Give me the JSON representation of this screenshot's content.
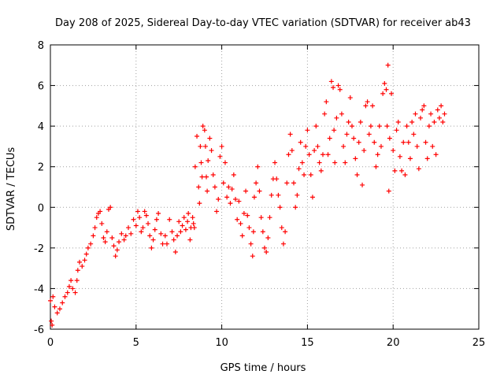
{
  "chart_data": {
    "type": "scatter",
    "title": "Day 208 of 2025, Sidereal Day-to-day VTEC variation (SDTVAR) for receiver ab43",
    "xlabel": "GPS time / hours",
    "ylabel": "SDTVAR / TECUs",
    "xlim": [
      0,
      25
    ],
    "ylim": [
      -6,
      8
    ],
    "x_ticks": [
      0,
      5,
      10,
      15,
      20,
      25
    ],
    "y_ticks": [
      -6,
      -4,
      -2,
      0,
      2,
      4,
      6,
      8
    ],
    "grid": true,
    "marker": "+",
    "color": "#ff0000",
    "series": [
      {
        "name": "SDTVAR",
        "points": [
          [
            0.0,
            -4.6
          ],
          [
            0.05,
            -5.6
          ],
          [
            0.1,
            -5.8
          ],
          [
            0.15,
            -4.4
          ],
          [
            0.25,
            -4.9
          ],
          [
            0.4,
            -5.2
          ],
          [
            0.55,
            -5.0
          ],
          [
            0.7,
            -4.7
          ],
          [
            0.85,
            -4.4
          ],
          [
            1.0,
            -4.2
          ],
          [
            1.1,
            -3.9
          ],
          [
            1.2,
            -3.6
          ],
          [
            1.3,
            -4.0
          ],
          [
            1.45,
            -4.2
          ],
          [
            1.55,
            -3.6
          ],
          [
            1.6,
            -3.1
          ],
          [
            1.7,
            -2.7
          ],
          [
            1.85,
            -2.9
          ],
          [
            2.0,
            -2.6
          ],
          [
            2.1,
            -2.3
          ],
          [
            2.2,
            -2.0
          ],
          [
            2.35,
            -1.8
          ],
          [
            2.5,
            -1.4
          ],
          [
            2.6,
            -1.0
          ],
          [
            2.7,
            -0.5
          ],
          [
            2.8,
            -0.3
          ],
          [
            2.9,
            -0.2
          ],
          [
            3.0,
            -0.8
          ],
          [
            3.1,
            -1.5
          ],
          [
            3.2,
            -1.7
          ],
          [
            3.3,
            -1.2
          ],
          [
            3.4,
            -0.1
          ],
          [
            3.5,
            0.0
          ],
          [
            3.6,
            -1.5
          ],
          [
            3.7,
            -1.9
          ],
          [
            3.8,
            -2.4
          ],
          [
            3.9,
            -2.1
          ],
          [
            4.0,
            -1.7
          ],
          [
            4.15,
            -1.3
          ],
          [
            4.3,
            -1.6
          ],
          [
            4.4,
            -1.4
          ],
          [
            4.55,
            -1.0
          ],
          [
            4.7,
            -1.3
          ],
          [
            4.85,
            -0.6
          ],
          [
            5.0,
            -0.9
          ],
          [
            5.1,
            -0.2
          ],
          [
            5.2,
            -0.5
          ],
          [
            5.3,
            -1.2
          ],
          [
            5.4,
            -1.0
          ],
          [
            5.5,
            -0.2
          ],
          [
            5.6,
            -0.4
          ],
          [
            5.7,
            -0.8
          ],
          [
            5.8,
            -1.4
          ],
          [
            5.9,
            -2.0
          ],
          [
            6.0,
            -1.6
          ],
          [
            6.1,
            -1.1
          ],
          [
            6.2,
            -0.6
          ],
          [
            6.3,
            -0.3
          ],
          [
            6.45,
            -1.3
          ],
          [
            6.55,
            -1.8
          ],
          [
            6.7,
            -1.4
          ],
          [
            6.8,
            -1.8
          ],
          [
            6.95,
            -0.6
          ],
          [
            7.1,
            -1.2
          ],
          [
            7.2,
            -1.6
          ],
          [
            7.3,
            -2.2
          ],
          [
            7.4,
            -1.4
          ],
          [
            7.5,
            -0.7
          ],
          [
            7.6,
            -1.2
          ],
          [
            7.7,
            -0.9
          ],
          [
            7.8,
            -0.5
          ],
          [
            7.9,
            -1.1
          ],
          [
            8.0,
            -0.7
          ],
          [
            8.05,
            -0.3
          ],
          [
            8.15,
            -1.6
          ],
          [
            8.2,
            -1.0
          ],
          [
            8.3,
            -0.5
          ],
          [
            8.35,
            -0.8
          ],
          [
            8.4,
            -1.0
          ],
          [
            8.45,
            2.0
          ],
          [
            8.55,
            3.5
          ],
          [
            8.65,
            1.0
          ],
          [
            8.7,
            0.2
          ],
          [
            8.75,
            3.0
          ],
          [
            8.8,
            2.2
          ],
          [
            8.85,
            1.5
          ],
          [
            8.9,
            4.0
          ],
          [
            9.0,
            3.8
          ],
          [
            9.05,
            3.0
          ],
          [
            9.1,
            1.5
          ],
          [
            9.15,
            0.8
          ],
          [
            9.2,
            2.3
          ],
          [
            9.3,
            3.4
          ],
          [
            9.4,
            2.8
          ],
          [
            9.5,
            1.6
          ],
          [
            9.6,
            1.0
          ],
          [
            9.7,
            -0.2
          ],
          [
            9.8,
            0.4
          ],
          [
            9.9,
            2.5
          ],
          [
            10.0,
            3.0
          ],
          [
            10.1,
            1.2
          ],
          [
            10.2,
            2.2
          ],
          [
            10.3,
            0.5
          ],
          [
            10.4,
            1.0
          ],
          [
            10.5,
            0.2
          ],
          [
            10.6,
            0.9
          ],
          [
            10.7,
            1.6
          ],
          [
            10.8,
            0.4
          ],
          [
            10.9,
            -0.6
          ],
          [
            11.0,
            0.3
          ],
          [
            11.1,
            -0.8
          ],
          [
            11.2,
            -1.4
          ],
          [
            11.3,
            -0.3
          ],
          [
            11.4,
            0.8
          ],
          [
            11.5,
            -0.4
          ],
          [
            11.6,
            -1.0
          ],
          [
            11.7,
            -1.8
          ],
          [
            11.8,
            -2.4
          ],
          [
            11.85,
            -1.2
          ],
          [
            11.9,
            0.5
          ],
          [
            12.0,
            1.2
          ],
          [
            12.1,
            2.0
          ],
          [
            12.2,
            0.8
          ],
          [
            12.3,
            -0.5
          ],
          [
            12.4,
            -1.2
          ],
          [
            12.5,
            -2.0
          ],
          [
            12.6,
            -2.2
          ],
          [
            12.7,
            -1.5
          ],
          [
            12.8,
            -0.5
          ],
          [
            12.9,
            0.6
          ],
          [
            13.0,
            1.4
          ],
          [
            13.1,
            2.2
          ],
          [
            13.2,
            1.4
          ],
          [
            13.3,
            0.6
          ],
          [
            13.4,
            0.0
          ],
          [
            13.5,
            -1.0
          ],
          [
            13.6,
            -1.8
          ],
          [
            13.7,
            -1.2
          ],
          [
            13.8,
            1.2
          ],
          [
            13.9,
            2.6
          ],
          [
            14.0,
            3.6
          ],
          [
            14.1,
            2.8
          ],
          [
            14.2,
            1.2
          ],
          [
            14.3,
            0.0
          ],
          [
            14.4,
            0.6
          ],
          [
            14.5,
            1.9
          ],
          [
            14.6,
            3.2
          ],
          [
            14.7,
            2.2
          ],
          [
            14.8,
            1.6
          ],
          [
            14.9,
            3.0
          ],
          [
            15.0,
            3.8
          ],
          [
            15.1,
            2.6
          ],
          [
            15.2,
            1.6
          ],
          [
            15.3,
            0.5
          ],
          [
            15.4,
            2.8
          ],
          [
            15.5,
            4.0
          ],
          [
            15.6,
            3.0
          ],
          [
            15.7,
            2.2
          ],
          [
            15.8,
            1.8
          ],
          [
            15.9,
            2.6
          ],
          [
            16.0,
            4.6
          ],
          [
            16.1,
            5.2
          ],
          [
            16.2,
            2.6
          ],
          [
            16.3,
            3.4
          ],
          [
            16.4,
            6.2
          ],
          [
            16.5,
            5.9
          ],
          [
            16.55,
            3.8
          ],
          [
            16.6,
            2.2
          ],
          [
            16.7,
            4.4
          ],
          [
            16.8,
            6.0
          ],
          [
            16.9,
            5.8
          ],
          [
            17.0,
            4.6
          ],
          [
            17.1,
            3.0
          ],
          [
            17.2,
            2.2
          ],
          [
            17.3,
            3.6
          ],
          [
            17.4,
            4.2
          ],
          [
            17.5,
            5.4
          ],
          [
            17.6,
            4.0
          ],
          [
            17.7,
            3.4
          ],
          [
            17.8,
            2.4
          ],
          [
            17.9,
            1.6
          ],
          [
            18.0,
            3.2
          ],
          [
            18.1,
            4.2
          ],
          [
            18.2,
            1.1
          ],
          [
            18.3,
            2.8
          ],
          [
            18.4,
            5.0
          ],
          [
            18.5,
            5.2
          ],
          [
            18.6,
            3.6
          ],
          [
            18.7,
            4.0
          ],
          [
            18.8,
            5.0
          ],
          [
            18.9,
            3.2
          ],
          [
            19.0,
            2.0
          ],
          [
            19.1,
            2.6
          ],
          [
            19.2,
            4.0
          ],
          [
            19.3,
            3.0
          ],
          [
            19.4,
            5.6
          ],
          [
            19.5,
            6.1
          ],
          [
            19.6,
            5.8
          ],
          [
            19.65,
            4.0
          ],
          [
            19.7,
            7.0
          ],
          [
            19.75,
            0.8
          ],
          [
            19.8,
            3.4
          ],
          [
            19.9,
            5.6
          ],
          [
            20.0,
            2.8
          ],
          [
            20.1,
            1.8
          ],
          [
            20.2,
            3.8
          ],
          [
            20.3,
            4.2
          ],
          [
            20.4,
            2.5
          ],
          [
            20.5,
            1.8
          ],
          [
            20.6,
            3.2
          ],
          [
            20.7,
            1.6
          ],
          [
            20.8,
            4.0
          ],
          [
            20.9,
            3.2
          ],
          [
            21.0,
            2.4
          ],
          [
            21.1,
            4.2
          ],
          [
            21.2,
            3.6
          ],
          [
            21.3,
            4.6
          ],
          [
            21.4,
            3.0
          ],
          [
            21.5,
            1.9
          ],
          [
            21.6,
            4.4
          ],
          [
            21.7,
            4.8
          ],
          [
            21.8,
            5.0
          ],
          [
            21.9,
            3.2
          ],
          [
            22.0,
            2.4
          ],
          [
            22.1,
            4.0
          ],
          [
            22.2,
            4.6
          ],
          [
            22.3,
            3.0
          ],
          [
            22.4,
            4.2
          ],
          [
            22.5,
            2.6
          ],
          [
            22.6,
            4.8
          ],
          [
            22.7,
            4.4
          ],
          [
            22.8,
            5.0
          ],
          [
            22.9,
            4.2
          ],
          [
            23.0,
            4.6
          ]
        ]
      }
    ]
  }
}
